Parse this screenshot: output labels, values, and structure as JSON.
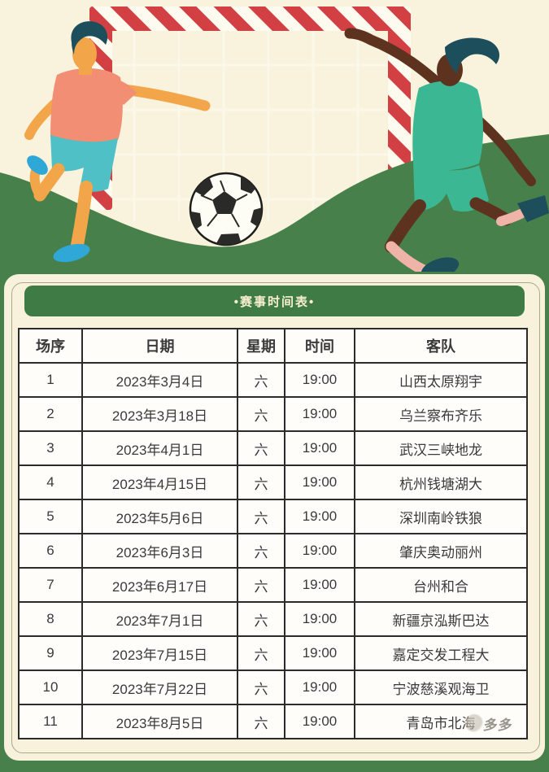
{
  "banner": {
    "title": "•赛事时间表•"
  },
  "schedule": {
    "headers": [
      "场序",
      "日期",
      "星期",
      "时间",
      "客队"
    ],
    "rows": [
      [
        "1",
        "2023年3月4日",
        "六",
        "19:00",
        "山西太原翔宇"
      ],
      [
        "2",
        "2023年3月18日",
        "六",
        "19:00",
        "乌兰察布齐乐"
      ],
      [
        "3",
        "2023年4月1日",
        "六",
        "19:00",
        "武汉三峡地龙"
      ],
      [
        "4",
        "2023年4月15日",
        "六",
        "19:00",
        "杭州钱塘湖大"
      ],
      [
        "5",
        "2023年5月6日",
        "六",
        "19:00",
        "深圳南岭铁狼"
      ],
      [
        "6",
        "2023年6月3日",
        "六",
        "19:00",
        "肇庆奥动丽州"
      ],
      [
        "7",
        "2023年6月17日",
        "六",
        "19:00",
        "台州和合"
      ],
      [
        "8",
        "2023年7月1日",
        "六",
        "19:00",
        "新疆京泓斯巴达"
      ],
      [
        "9",
        "2023年7月15日",
        "六",
        "19:00",
        "嘉定交发工程大"
      ],
      [
        "10",
        "2023年7月22日",
        "六",
        "19:00",
        "宁波慈溪观海卫"
      ],
      [
        "11",
        "2023年8月5日",
        "六",
        "19:00",
        "青岛市北海"
      ]
    ]
  },
  "watermark": {
    "text": "多多"
  },
  "colors": {
    "sky": "#f9f2dc",
    "grass": "#47804a",
    "banner_green": "#3e7b45",
    "card_cream": "#f8f2dc",
    "table_bg": "#fefdf9",
    "table_border": "#2b2b2b",
    "text": "#3a3a3a",
    "title_text": "#f7eecf",
    "goal_red": "#d24044",
    "goal_white": "#fdfaf0",
    "net_line": "#fffef4",
    "ball_dark": "#2a2a28",
    "left_shirt": "#f28e74",
    "left_shorts": "#4fc0c6",
    "left_skin": "#f2a649",
    "left_shoes": "#2fa8d8",
    "right_skin": "#5d3320",
    "right_kit": "#3bb793",
    "right_socks": "#f0b3a8",
    "hair_dark": "#1c4e5c"
  }
}
